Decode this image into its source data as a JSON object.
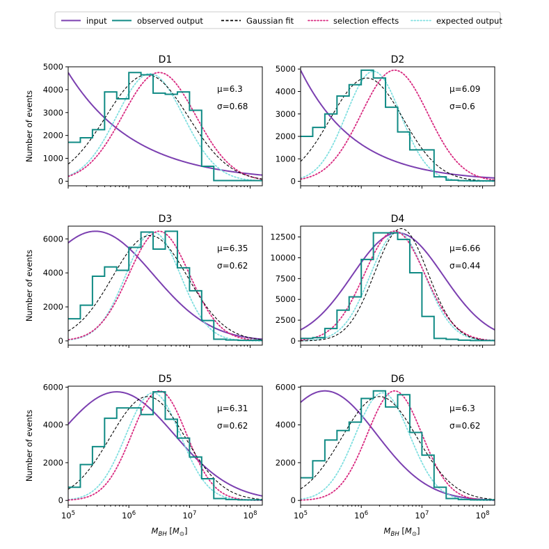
{
  "chart_data": {
    "type": "line",
    "shared": {
      "xlabel": "M_BH [M_⊙]",
      "xlabel_sym": "M",
      "xlabel_sub": "BH",
      "xlabel_unit_open": " [",
      "xlabel_unit_sym": "M",
      "xlabel_unit_sub": "⊙",
      "xlabel_close": "]",
      "ylabel": "Number of events",
      "x_scale": "log",
      "xlim_log10": [
        5.0,
        8.2
      ],
      "x_ticks_log10": [
        5,
        6,
        7,
        8
      ],
      "x_tick_base": "10",
      "x_tick_exps": [
        "5",
        "6",
        "7",
        "8"
      ],
      "hist_edges_log10": [
        5.0,
        5.2,
        5.4,
        5.6,
        5.8,
        6.0,
        6.2,
        6.4,
        6.6,
        6.8,
        7.0,
        7.2,
        7.4,
        7.6,
        7.8,
        8.0,
        8.2
      ]
    },
    "legend": {
      "placement": "top",
      "entries": [
        {
          "label": "input",
          "color": "#7b3fb0",
          "style": "solid"
        },
        {
          "label": "observed output",
          "color": "#0f8a84",
          "style": "solid"
        },
        {
          "label": "Gaussian fit",
          "color": "#000000",
          "style": "dashed"
        },
        {
          "label": "selection effects",
          "color": "#d8287f",
          "style": "dotted"
        },
        {
          "label": "expected output",
          "color": "#7fdfe0",
          "style": "dotted"
        }
      ]
    },
    "panels": [
      {
        "title": "D1",
        "mu": "μ=6.3",
        "sigma": "σ=0.68",
        "ylim": [
          -200,
          5000
        ],
        "yticks": [
          0,
          1000,
          2000,
          3000,
          4000,
          5000
        ],
        "ytick_labels": [
          "0",
          "1000",
          "2000",
          "3000",
          "4000",
          "5000"
        ],
        "hist": [
          1700,
          1900,
          2250,
          3900,
          3600,
          4750,
          4650,
          3850,
          3800,
          3900,
          3100,
          650,
          30,
          30,
          30,
          30
        ],
        "input": {
          "kind": "exp",
          "A": 4750,
          "B": 0.9
        },
        "fit": {
          "mu": 6.3,
          "sigma": 0.68,
          "amp": 4650
        },
        "selection": {
          "mu": 6.5,
          "sigma": 0.6,
          "amp": 4750
        },
        "expected": {
          "mu": 6.35,
          "sigma": 0.55,
          "amp": 4700
        }
      },
      {
        "title": "D2",
        "mu": "μ=6.09",
        "sigma": "σ=0.6",
        "ylim": [
          -200,
          5100
        ],
        "yticks": [
          0,
          1000,
          2000,
          3000,
          4000,
          5000
        ],
        "ytick_labels": [
          "0",
          "1000",
          "2000",
          "3000",
          "4000",
          "5000"
        ],
        "hist": [
          2000,
          2400,
          3000,
          3800,
          4300,
          4950,
          4600,
          3300,
          2200,
          1400,
          1400,
          200,
          50,
          30,
          20,
          20
        ],
        "input": {
          "kind": "exp",
          "A": 4950,
          "B": 1.1
        },
        "fit": {
          "mu": 6.09,
          "sigma": 0.6,
          "amp": 4600
        },
        "selection": {
          "mu": 6.55,
          "sigma": 0.55,
          "amp": 4950
        },
        "expected": {
          "mu": 6.2,
          "sigma": 0.45,
          "amp": 4900
        }
      },
      {
        "title": "D3",
        "mu": "μ=6.35",
        "sigma": "σ=0.62",
        "ylim": [
          -250,
          6750
        ],
        "yticks": [
          0,
          2000,
          4000,
          6000
        ],
        "ytick_labels": [
          "0",
          "2000",
          "4000",
          "6000"
        ],
        "hist": [
          1300,
          2100,
          3800,
          4350,
          4150,
          5500,
          6400,
          5400,
          6450,
          4300,
          2950,
          1200,
          100,
          50,
          30,
          30
        ],
        "input": {
          "kind": "gauss",
          "mu": 5.45,
          "sigma": 0.95,
          "amp": 6450
        },
        "fit": {
          "mu": 6.35,
          "sigma": 0.62,
          "amp": 6200
        },
        "selection": {
          "mu": 6.5,
          "sigma": 0.5,
          "amp": 6450
        },
        "expected": {
          "mu": 6.4,
          "sigma": 0.45,
          "amp": 6400
        }
      },
      {
        "title": "D4",
        "mu": "μ=6.66",
        "sigma": "σ=0.44",
        "ylim": [
          -500,
          13800
        ],
        "yticks": [
          0,
          2500,
          5000,
          7500,
          10000,
          12500
        ],
        "ytick_labels": [
          "0",
          "2500",
          "5000",
          "7500",
          "10000",
          "12500"
        ],
        "hist": [
          300,
          400,
          1500,
          3700,
          5300,
          9800,
          13000,
          13000,
          12200,
          8200,
          2950,
          300,
          200,
          100,
          50,
          50
        ],
        "input": {
          "kind": "gauss",
          "mu": 6.6,
          "sigma": 0.75,
          "amp": 13000
        },
        "fit": {
          "mu": 6.66,
          "sigma": 0.44,
          "amp": 13500
        },
        "selection": {
          "mu": 6.55,
          "sigma": 0.5,
          "amp": 13200
        },
        "expected": {
          "mu": 6.6,
          "sigma": 0.45,
          "amp": 13100
        }
      },
      {
        "title": "D5",
        "mu": "μ=6.31",
        "sigma": "σ=0.62",
        "ylim": [
          -250,
          6050
        ],
        "yticks": [
          0,
          2000,
          4000,
          6000
        ],
        "ytick_labels": [
          "0",
          "2000",
          "4000",
          "6000"
        ],
        "hist": [
          700,
          1900,
          2850,
          4350,
          4900,
          4900,
          4550,
          5750,
          4300,
          3300,
          2300,
          1150,
          100,
          50,
          30,
          30
        ],
        "input": {
          "kind": "gauss",
          "mu": 5.8,
          "sigma": 0.95,
          "amp": 5750
        },
        "fit": {
          "mu": 6.31,
          "sigma": 0.62,
          "amp": 5500
        },
        "selection": {
          "mu": 6.5,
          "sigma": 0.45,
          "amp": 5800
        },
        "expected": {
          "mu": 6.4,
          "sigma": 0.45,
          "amp": 5700
        }
      },
      {
        "title": "D6",
        "mu": "μ=6.3",
        "sigma": "σ=0.62",
        "ylim": [
          -250,
          6050
        ],
        "yticks": [
          0,
          2000,
          4000,
          6000
        ],
        "ytick_labels": [
          "0",
          "2000",
          "4000",
          "6000"
        ],
        "hist": [
          1200,
          2100,
          3200,
          3700,
          4150,
          5400,
          5800,
          4950,
          5600,
          3600,
          2400,
          700,
          100,
          50,
          30,
          30
        ],
        "input": {
          "kind": "gauss",
          "mu": 5.4,
          "sigma": 0.85,
          "amp": 5800
        },
        "fit": {
          "mu": 6.3,
          "sigma": 0.62,
          "amp": 5500
        },
        "selection": {
          "mu": 6.55,
          "sigma": 0.45,
          "amp": 5800
        },
        "expected": {
          "mu": 6.35,
          "sigma": 0.45,
          "amp": 5700
        }
      }
    ]
  }
}
